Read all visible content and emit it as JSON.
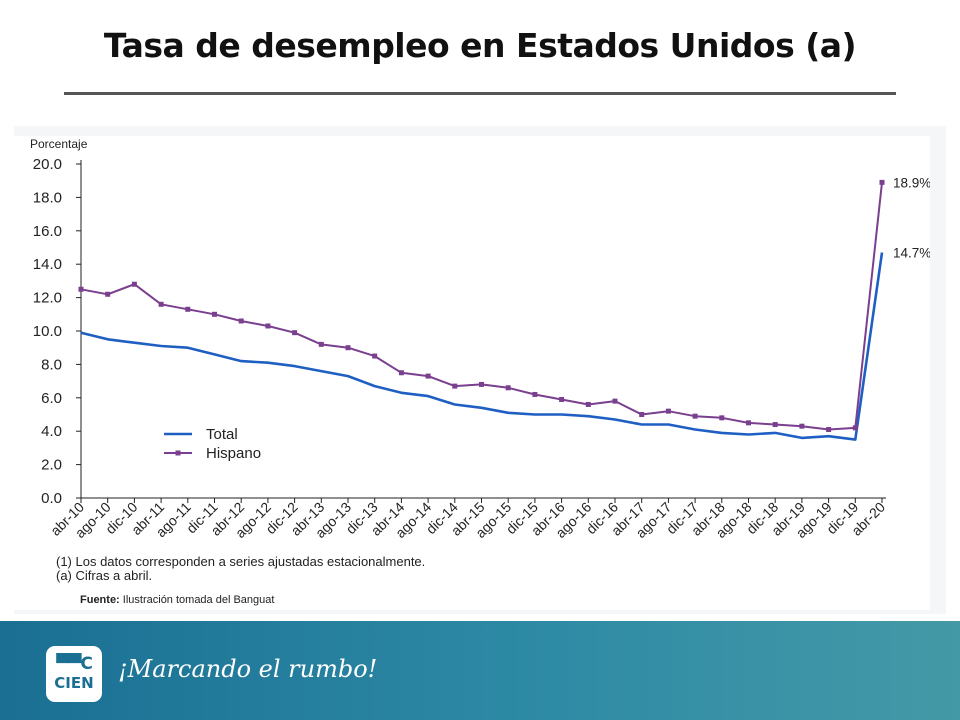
{
  "slide": {
    "title": "Tasa de desempleo en Estados Unidos (a)",
    "source_label": "Fuente:",
    "source_text": " Ilustración tomada del Banguat",
    "logo_top": "▀▀C",
    "logo_bottom": "CIEN",
    "slogan": "¡Marcando el rumbo!"
  },
  "colors": {
    "total": "#1f5fc4",
    "hispano": "#7a3f8f",
    "footer": "#1a6f93"
  },
  "chart_data": {
    "type": "line",
    "ylabel": "Porcentaje",
    "ylim": [
      0,
      20
    ],
    "yticks": [
      "0.0",
      "2.0",
      "4.0",
      "6.0",
      "8.0",
      "10.0",
      "12.0",
      "14.0",
      "16.0",
      "18.0",
      "20.0"
    ],
    "categories": [
      "abr-10",
      "ago-10",
      "dic-10",
      "abr-11",
      "ago-11",
      "dic-11",
      "abr-12",
      "ago-12",
      "dic-12",
      "abr-13",
      "ago-13",
      "dic-13",
      "abr-14",
      "ago-14",
      "dic-14",
      "abr-15",
      "ago-15",
      "dic-15",
      "abr-16",
      "ago-16",
      "dic-16",
      "abr-17",
      "ago-17",
      "dic-17",
      "abr-18",
      "ago-18",
      "dic-18",
      "abr-19",
      "ago-19",
      "dic-19",
      "abr-20"
    ],
    "series": [
      {
        "name": "Total",
        "color": "#1f5fc4",
        "marker": "none",
        "values": [
          9.9,
          9.5,
          9.3,
          9.1,
          9.0,
          8.6,
          8.2,
          8.1,
          7.9,
          7.6,
          7.3,
          6.7,
          6.3,
          6.1,
          5.6,
          5.4,
          5.1,
          5.0,
          5.0,
          4.9,
          4.7,
          4.4,
          4.4,
          4.1,
          3.9,
          3.8,
          3.9,
          3.6,
          3.7,
          3.5,
          14.7
        ]
      },
      {
        "name": "Hispano",
        "color": "#7a3f8f",
        "marker": "square",
        "values": [
          12.5,
          12.2,
          12.8,
          11.6,
          11.3,
          11.0,
          10.6,
          10.3,
          9.9,
          9.2,
          9.0,
          8.5,
          7.5,
          7.3,
          6.7,
          6.8,
          6.6,
          6.2,
          5.9,
          5.6,
          5.8,
          5.0,
          5.2,
          4.9,
          4.8,
          4.5,
          4.4,
          4.3,
          4.1,
          4.2,
          18.9
        ]
      }
    ],
    "end_labels": [
      "18.9%",
      "14.7%"
    ],
    "notes": [
      "(1) Los datos corresponden a series ajustadas estacionalmente.",
      "(a) Cifras a abril."
    ],
    "legend_position": "bottom-left"
  }
}
